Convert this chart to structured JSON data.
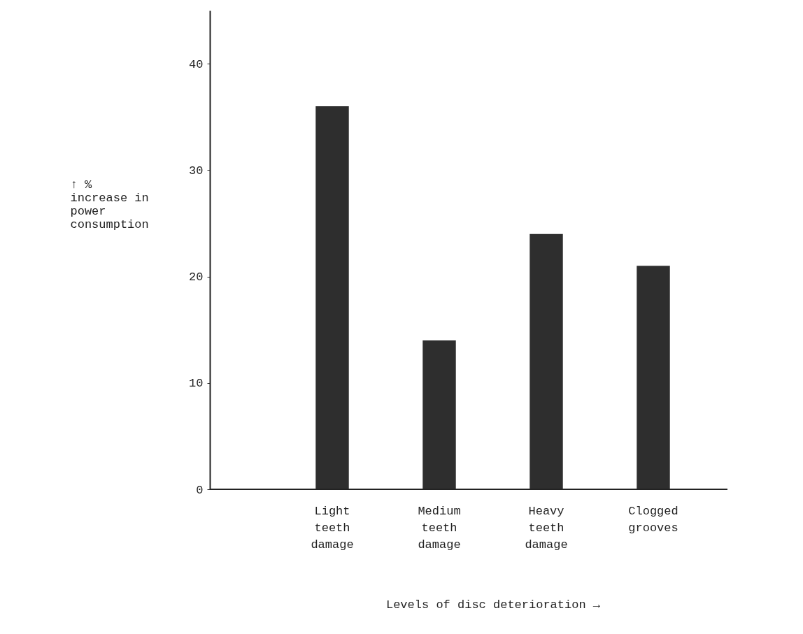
{
  "chart_data": {
    "type": "bar",
    "categories": [
      "Light teeth damage",
      "Medium teeth damage",
      "Heavy teeth damage",
      "Clogged grooves"
    ],
    "values": [
      36,
      14,
      24,
      21
    ],
    "color": "#2e2e2e",
    "xlabel": "Levels of disc deterioration →",
    "ylabel": "↑ % increase in power consumption",
    "ylim": [
      0,
      45
    ],
    "yticks": [
      0,
      10,
      20,
      30,
      40
    ],
    "grid": false
  }
}
